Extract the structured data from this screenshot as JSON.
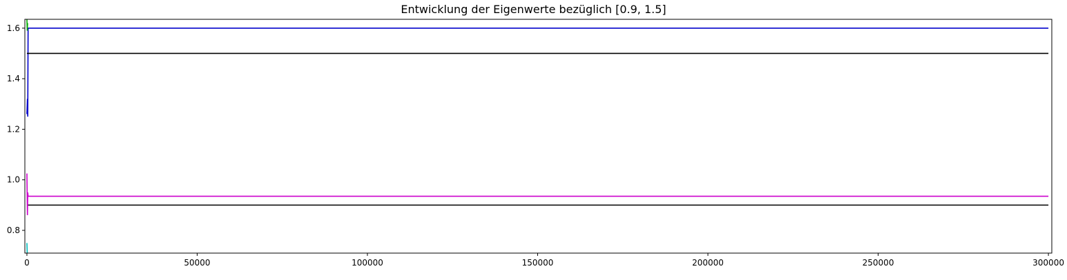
{
  "chart_data": {
    "type": "line",
    "title": "Entwicklung der Eigenwerte bezüglich [0.9, 1.5]",
    "xlabel": "",
    "ylabel": "",
    "xlim": [
      -600,
      301000
    ],
    "ylim": [
      0.71,
      1.635
    ],
    "grid": false,
    "x_ticks": [
      {
        "value": 0,
        "label": "0"
      },
      {
        "value": 50000,
        "label": "50000"
      },
      {
        "value": 100000,
        "label": "100000"
      },
      {
        "value": 150000,
        "label": "150000"
      },
      {
        "value": 200000,
        "label": "200000"
      },
      {
        "value": 250000,
        "label": "250000"
      },
      {
        "value": 300000,
        "label": "300000"
      }
    ],
    "y_ticks": [
      {
        "value": 0.8,
        "label": "0.8"
      },
      {
        "value": 1.0,
        "label": "1.0"
      },
      {
        "value": 1.2,
        "label": "1.2"
      },
      {
        "value": 1.4,
        "label": "1.4"
      },
      {
        "value": 1.6,
        "label": "1.6"
      }
    ],
    "series": [
      {
        "color": "#0000cc",
        "points": [
          [
            0,
            1.26
          ],
          [
            150,
            1.32
          ],
          [
            250,
            1.25
          ],
          [
            350,
            1.6
          ],
          [
            300000,
            1.6
          ]
        ]
      },
      {
        "color": "#000000",
        "points": [
          [
            0,
            1.5
          ],
          [
            300000,
            1.5
          ]
        ]
      },
      {
        "color": "#000000",
        "points": [
          [
            0,
            0.9
          ],
          [
            300000,
            0.9
          ]
        ]
      },
      {
        "color": "#cc00cc",
        "points": [
          [
            0,
            1.025
          ],
          [
            150,
            0.86
          ],
          [
            250,
            0.95
          ],
          [
            350,
            0.935
          ],
          [
            300000,
            0.935
          ]
        ]
      },
      {
        "color": "#00aa00",
        "points": [
          [
            0,
            1.635
          ],
          [
            100,
            1.59
          ],
          [
            200,
            1.62
          ]
        ]
      },
      {
        "color": "#00bbbb",
        "points": [
          [
            0,
            0.75
          ],
          [
            100,
            0.71
          ]
        ]
      }
    ]
  }
}
